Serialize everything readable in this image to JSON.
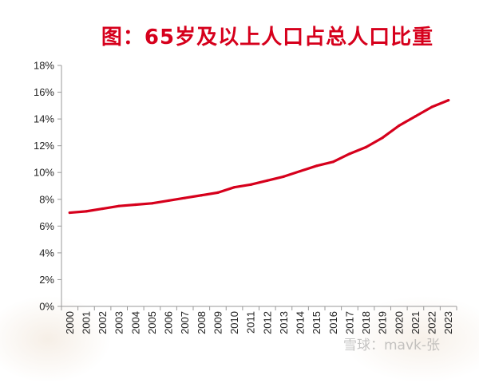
{
  "title": "图：65岁及以上人口占总人口比重",
  "watermark": "雪球：mavk-张",
  "colors": {
    "line": "#d6001c",
    "title": "#d6001c",
    "axis": "#999999"
  },
  "chart_data": {
    "type": "line",
    "title": "图：65岁及以上人口占总人口比重",
    "xlabel": "",
    "ylabel": "",
    "x": [
      "2000",
      "2001",
      "2002",
      "2003",
      "2004",
      "2005",
      "2006",
      "2007",
      "2008",
      "2009",
      "2010",
      "2011",
      "2012",
      "2013",
      "2014",
      "2015",
      "2016",
      "2017",
      "2018",
      "2019",
      "2020",
      "2021",
      "2022",
      "2023"
    ],
    "series": [
      {
        "name": "",
        "values": [
          7.0,
          7.1,
          7.3,
          7.5,
          7.6,
          7.7,
          7.9,
          8.1,
          8.3,
          8.5,
          8.9,
          9.1,
          9.4,
          9.7,
          10.1,
          10.5,
          10.8,
          11.4,
          11.9,
          12.6,
          13.5,
          14.2,
          14.9,
          15.4
        ]
      }
    ],
    "ylim": [
      0,
      18
    ],
    "yticks": [
      0,
      2,
      4,
      6,
      8,
      10,
      12,
      14,
      16,
      18
    ],
    "ytick_labels": [
      "0%",
      "2%",
      "4%",
      "6%",
      "8%",
      "10%",
      "12%",
      "14%",
      "16%",
      "18%"
    ],
    "grid": false,
    "legend": "none"
  }
}
